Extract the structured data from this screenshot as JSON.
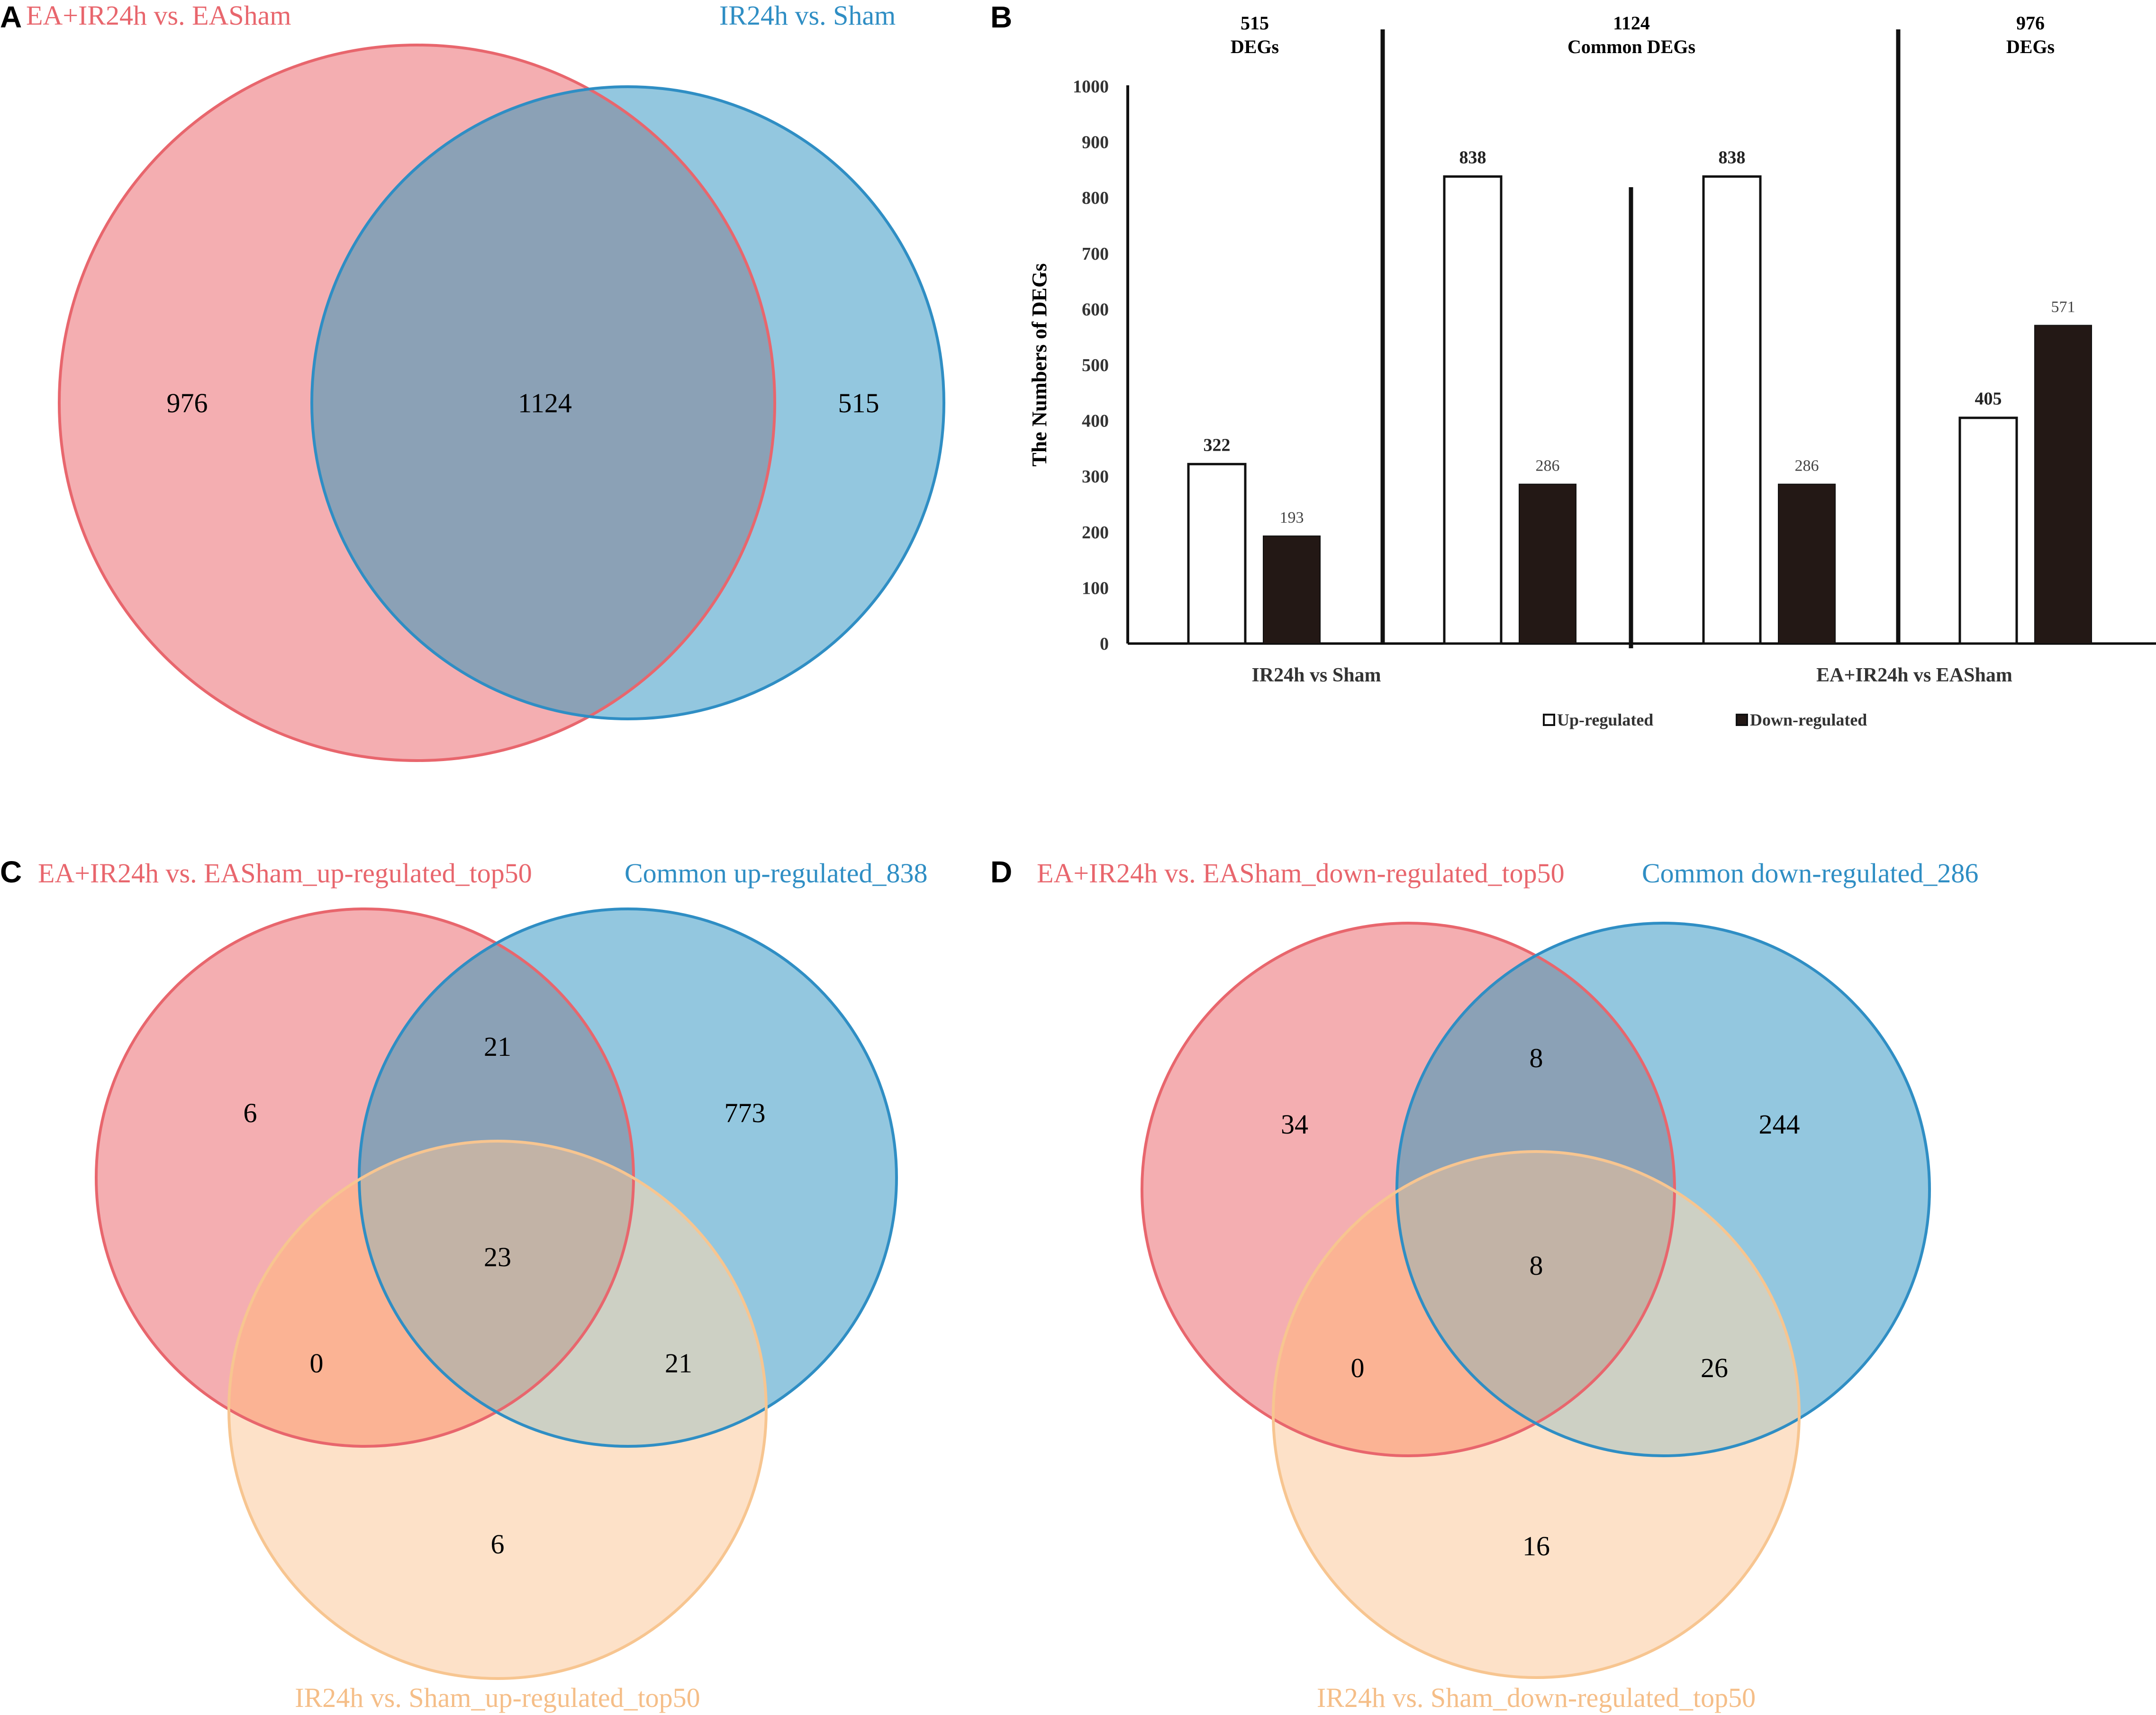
{
  "panels": {
    "A": "A",
    "B": "B",
    "C": "C",
    "D": "D"
  },
  "colors": {
    "red_fill": "#f4aeb1",
    "red_stroke": "#e8666d",
    "blue_fill": "#93c7df",
    "blue_stroke": "#2f8ec4",
    "overlap_fill": "#8ba1b6",
    "orange_fill": "#fde1c8",
    "orange_stroke": "#f7c590",
    "red_title": "#e8666d",
    "blue_title": "#2f8ec4",
    "orange_title": "#f5be88",
    "bar_down": "#231815"
  },
  "venn_a": {
    "title_left": "EA+IR24h vs. EASham",
    "title_right": "IR24h vs. Sham",
    "only_left": "976",
    "both": "1124",
    "only_right": "515"
  },
  "venn_c": {
    "title_red": "EA+IR24h vs. EASham_up-regulated_top50",
    "title_blue": "Common up-regulated_838",
    "title_orange": "IR24h vs. Sham_up-regulated_top50",
    "red_only": "6",
    "red_blue": "21",
    "blue_only": "773",
    "all_three": "23",
    "red_orange": "0",
    "blue_orange": "21",
    "orange_only": "6"
  },
  "venn_d": {
    "title_red": "EA+IR24h vs. EASham_down-regulated_top50",
    "title_blue": "Common down-regulated_286",
    "title_orange": "IR24h vs. Sham_down-regulated_top50",
    "red_only": "34",
    "red_blue": "8",
    "blue_only": "244",
    "all_three": "8",
    "red_orange": "0",
    "blue_orange": "26",
    "orange_only": "16"
  },
  "chart_data": {
    "type": "bar",
    "title": "",
    "ylabel": "The Numbers of DEGs",
    "ylim": [
      0,
      1000
    ],
    "yticks": [
      0,
      100,
      200,
      300,
      400,
      500,
      600,
      700,
      800,
      900,
      1000
    ],
    "series": [
      {
        "name": "Up-regulated"
      },
      {
        "name": "Down-regulated"
      }
    ],
    "bars": [
      {
        "section": "515 DEGs",
        "series": "Up-regulated",
        "value": 322,
        "label": "322"
      },
      {
        "section": "515 DEGs",
        "series": "Down-regulated",
        "value": 193,
        "label": "193"
      },
      {
        "section": "1124 Common DEGs (IR24h vs Sham)",
        "series": "Up-regulated",
        "value": 838,
        "label": "838"
      },
      {
        "section": "1124 Common DEGs (IR24h vs Sham)",
        "series": "Down-regulated",
        "value": 286,
        "label": "286"
      },
      {
        "section": "1124 Common DEGs (EA+IR24h vs EASham)",
        "series": "Up-regulated",
        "value": 838,
        "label": "838"
      },
      {
        "section": "1124 Common DEGs (EA+IR24h vs EASham)",
        "series": "Down-regulated",
        "value": 286,
        "label": "286"
      },
      {
        "section": "976 DEGs",
        "series": "Up-regulated",
        "value": 405,
        "label": "405"
      },
      {
        "section": "976 DEGs",
        "series": "Down-regulated",
        "value": 571,
        "label": "571"
      }
    ],
    "sections": [
      {
        "line1": "515",
        "line2": "DEGs"
      },
      {
        "line1": "1124",
        "line2": "Common DEGs"
      },
      {
        "line1": "976",
        "line2": "DEGs"
      }
    ],
    "group_labels": [
      "IR24h vs Sham",
      "EA+IR24h vs EASham"
    ],
    "legend": [
      "Up-regulated",
      "Down-regulated"
    ]
  }
}
